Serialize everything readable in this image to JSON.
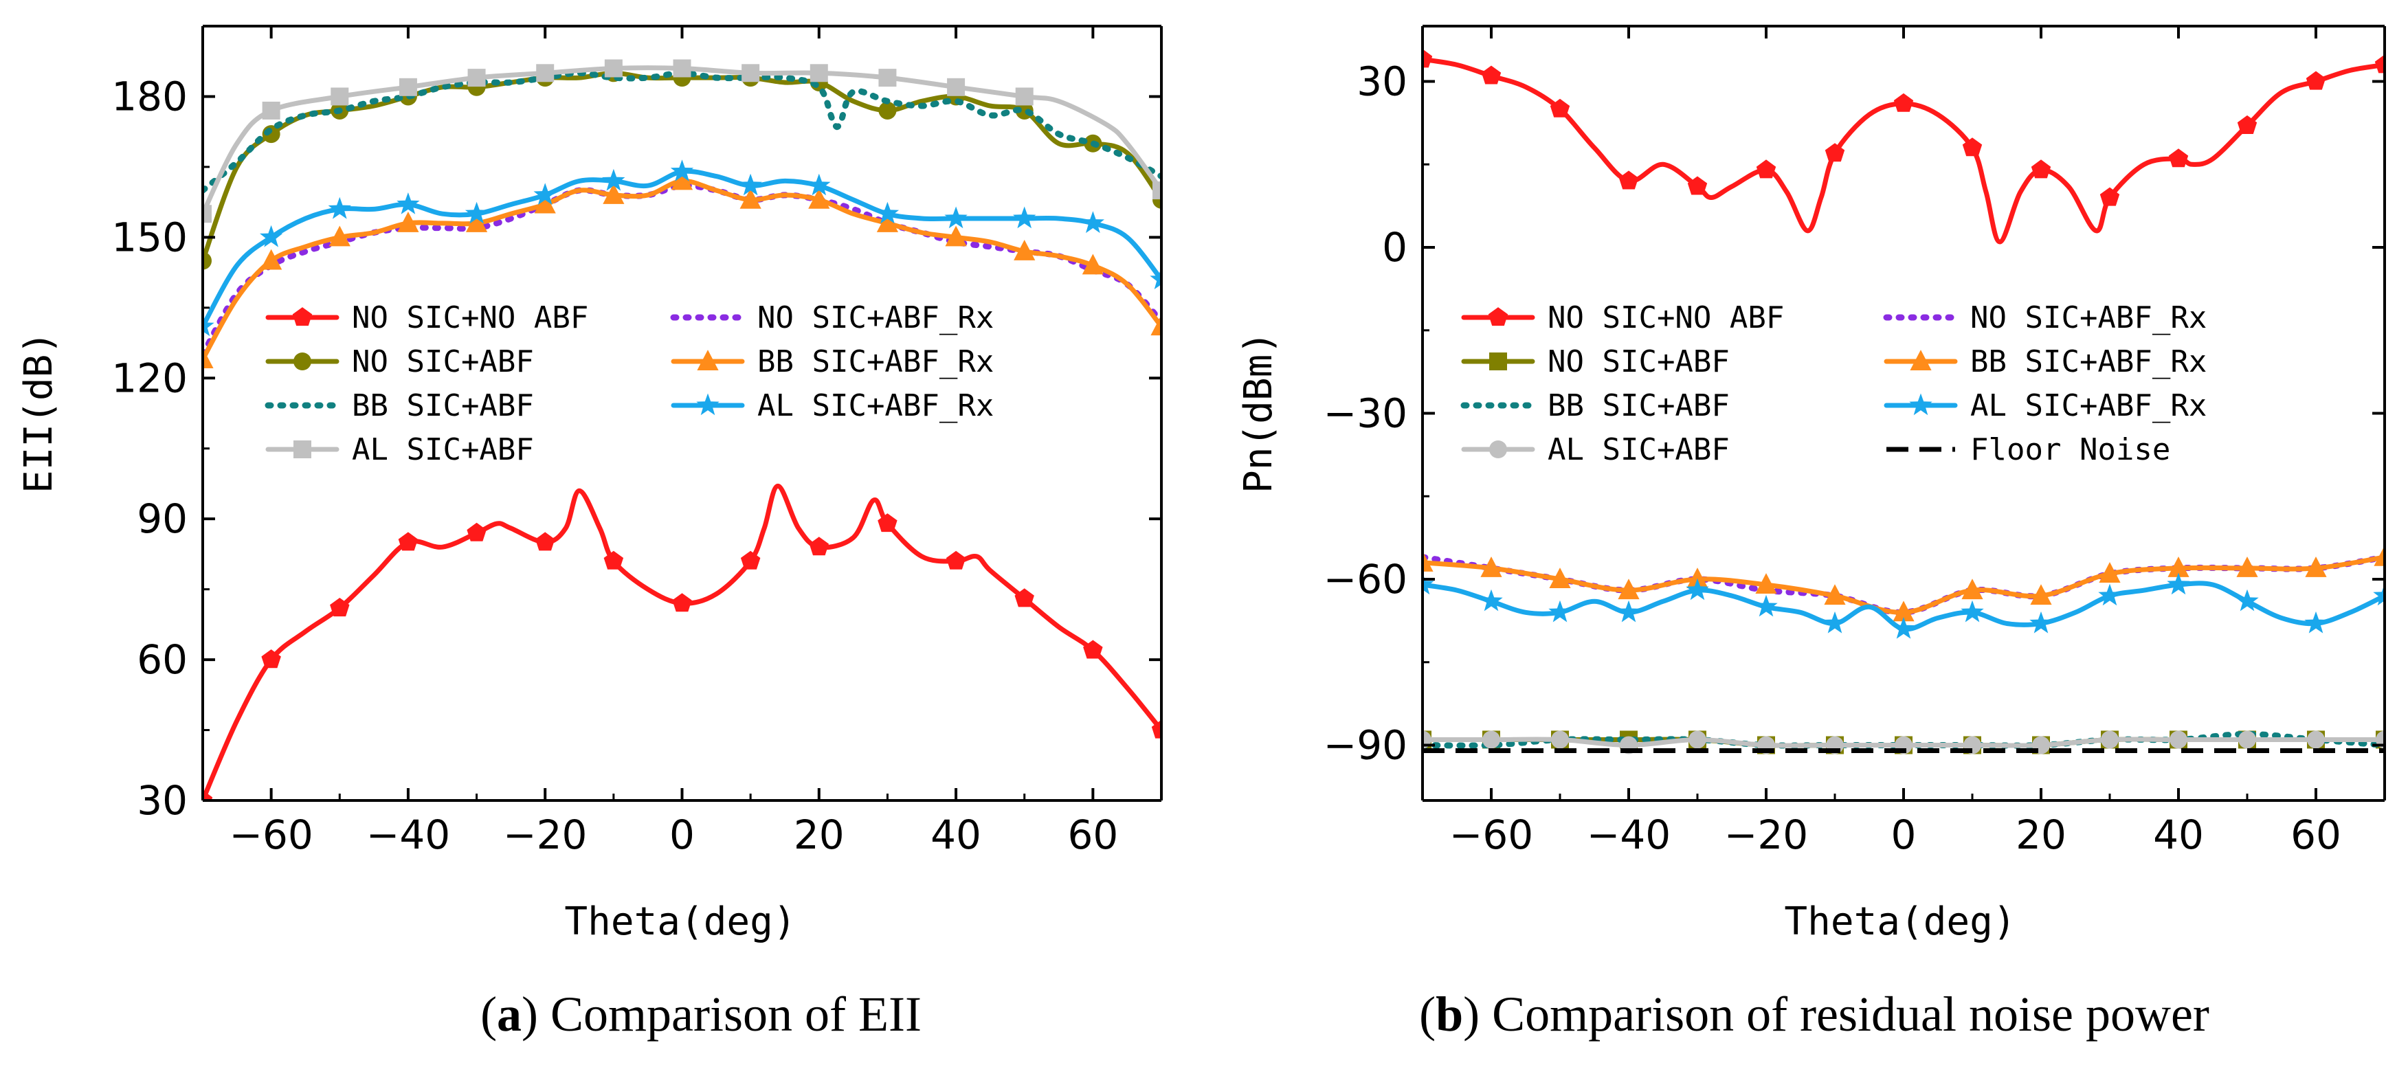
{
  "chart_data": [
    {
      "id": "a",
      "type": "line",
      "caption_letter": "a",
      "caption_text": "Comparison of EII",
      "xlabel": "Theta(deg)",
      "ylabel": "EII(dB)",
      "xlim": [
        -70,
        70
      ],
      "ylim": [
        30,
        195
      ],
      "xticks": [
        -60,
        -40,
        -20,
        0,
        20,
        40,
        60
      ],
      "yticks": [
        30,
        60,
        90,
        120,
        150,
        180
      ],
      "legend_position": "center",
      "series": [
        {
          "name": "NO SIC+NO ABF",
          "color": "#ff1a1a",
          "style": "solid",
          "marker": "pentagon",
          "x": [
            -70,
            -65,
            -60,
            -55,
            -50,
            -45,
            -40,
            -35,
            -30,
            -27,
            -25,
            -20,
            -17,
            -15,
            -12,
            -10,
            -5,
            0,
            5,
            10,
            12,
            14,
            17,
            20,
            25,
            28,
            30,
            35,
            40,
            43,
            45,
            50,
            55,
            60,
            65,
            70
          ],
          "y": [
            30,
            47,
            60,
            66,
            71,
            78,
            85,
            84,
            87,
            89,
            88,
            85,
            88,
            96,
            88,
            81,
            75,
            72,
            74,
            81,
            88,
            97,
            88,
            84,
            86,
            94,
            89,
            82,
            81,
            82,
            79,
            73,
            67,
            62,
            54,
            45
          ]
        },
        {
          "name": "NO SIC+ABF",
          "color": "#808000",
          "style": "solid",
          "marker": "circle",
          "x": [
            -70,
            -65,
            -60,
            -55,
            -50,
            -45,
            -40,
            -35,
            -30,
            -25,
            -20,
            -15,
            -10,
            -5,
            0,
            5,
            10,
            15,
            20,
            25,
            30,
            35,
            40,
            45,
            50,
            55,
            60,
            65,
            70
          ],
          "y": [
            145,
            165,
            172,
            176,
            177,
            178,
            180,
            182,
            182,
            183,
            184,
            184,
            185,
            184,
            184,
            184,
            184,
            183,
            183,
            179,
            177,
            179,
            180,
            178,
            177,
            170,
            170,
            168,
            158
          ]
        },
        {
          "name": "BB SIC+ABF",
          "color": "#108080",
          "style": "dotted",
          "marker": "none",
          "x": [
            -70,
            -65,
            -60,
            -55,
            -50,
            -45,
            -40,
            -35,
            -30,
            -25,
            -20,
            -15,
            -10,
            -5,
            0,
            5,
            10,
            15,
            20,
            22,
            23,
            25,
            30,
            35,
            40,
            45,
            50,
            55,
            60,
            65,
            70
          ],
          "y": [
            160,
            166,
            173,
            176,
            177,
            179,
            180,
            182,
            183,
            183,
            184,
            185,
            184,
            184,
            185,
            184,
            184,
            184,
            182,
            175,
            174,
            181,
            179,
            178,
            179,
            176,
            177,
            172,
            170,
            167,
            163
          ]
        },
        {
          "name": "AL SIC+ABF",
          "color": "#c0c0c0",
          "style": "solid",
          "marker": "square",
          "x": [
            -70,
            -65,
            -60,
            -50,
            -40,
            -30,
            -20,
            -10,
            0,
            10,
            20,
            30,
            40,
            50,
            55,
            62,
            65,
            70
          ],
          "y": [
            155,
            170,
            177,
            180,
            182,
            184,
            185,
            186,
            186,
            185,
            185,
            184,
            182,
            180,
            179,
            174,
            170,
            160
          ]
        },
        {
          "name": "NO SIC+ABF_Rx",
          "color": "#8a2be2",
          "style": "dotted",
          "marker": "none",
          "x": [
            -70,
            -65,
            -60,
            -55,
            -50,
            -45,
            -40,
            -35,
            -30,
            -25,
            -20,
            -15,
            -10,
            -5,
            0,
            5,
            10,
            15,
            20,
            25,
            30,
            35,
            40,
            45,
            50,
            55,
            60,
            65,
            70
          ],
          "y": [
            125,
            138,
            144,
            147,
            149,
            151,
            152,
            152,
            152,
            154,
            157,
            160,
            159,
            159,
            161,
            160,
            158,
            159,
            158,
            156,
            153,
            151,
            149,
            148,
            147,
            146,
            143,
            140,
            132
          ]
        },
        {
          "name": "BB SIC+ABF_Rx",
          "color": "#ff8c1a",
          "style": "solid",
          "marker": "triangle",
          "x": [
            -70,
            -65,
            -60,
            -55,
            -50,
            -45,
            -40,
            -35,
            -30,
            -25,
            -20,
            -15,
            -10,
            -5,
            0,
            5,
            10,
            15,
            20,
            25,
            30,
            35,
            40,
            45,
            50,
            55,
            60,
            65,
            70
          ],
          "y": [
            124,
            137,
            145,
            148,
            150,
            151,
            153,
            153,
            153,
            155,
            157,
            160,
            159,
            159,
            162,
            160,
            158,
            159,
            158,
            155,
            153,
            151,
            150,
            149,
            147,
            146,
            144,
            140,
            131
          ]
        },
        {
          "name": "AL SIC+ABF_Rx",
          "color": "#1aa7ec",
          "style": "solid",
          "marker": "star",
          "x": [
            -70,
            -65,
            -60,
            -55,
            -50,
            -45,
            -40,
            -35,
            -30,
            -25,
            -20,
            -15,
            -10,
            -5,
            0,
            5,
            10,
            15,
            20,
            25,
            30,
            35,
            40,
            45,
            50,
            55,
            60,
            65,
            70
          ],
          "y": [
            131,
            144,
            150,
            154,
            156,
            156,
            157,
            155,
            155,
            157,
            159,
            162,
            162,
            161,
            164,
            163,
            161,
            162,
            161,
            158,
            155,
            154,
            154,
            154,
            154,
            154,
            153,
            150,
            141
          ]
        }
      ]
    },
    {
      "id": "b",
      "type": "line",
      "caption_letter": "b",
      "caption_text": "Comparison of residual noise power",
      "xlabel": "Theta(deg)",
      "ylabel": "Pn(dBm)",
      "xlim": [
        -70,
        70
      ],
      "ylim": [
        -100,
        40
      ],
      "xticks": [
        -60,
        -40,
        -20,
        0,
        20,
        40,
        60
      ],
      "yticks": [
        -90,
        -60,
        -30,
        0,
        30
      ],
      "legend_position": "center-left",
      "series": [
        {
          "name": "NO SIC+NO ABF",
          "color": "#ff1a1a",
          "style": "solid",
          "marker": "pentagon",
          "x": [
            -70,
            -65,
            -60,
            -55,
            -50,
            -45,
            -40,
            -35,
            -30,
            -28,
            -25,
            -20,
            -17,
            -14,
            -12,
            -10,
            -5,
            0,
            5,
            10,
            12,
            14,
            17,
            20,
            24,
            28,
            30,
            35,
            40,
            42,
            45,
            50,
            55,
            60,
            65,
            70
          ],
          "y": [
            34,
            33,
            31,
            29,
            25,
            18,
            12,
            15,
            11,
            9,
            11,
            14,
            10,
            3,
            9,
            17,
            24,
            26,
            24,
            18,
            10,
            1,
            10,
            14,
            11,
            3,
            9,
            15,
            16,
            15,
            16,
            22,
            28,
            30,
            32,
            33
          ]
        },
        {
          "name": "NO SIC+ABF",
          "color": "#808000",
          "style": "solid",
          "marker": "square",
          "x": [
            -70,
            -60,
            -50,
            -40,
            -30,
            -20,
            -10,
            0,
            10,
            20,
            30,
            40,
            50,
            60,
            70
          ],
          "y": [
            -89,
            -89,
            -89,
            -89,
            -89,
            -90,
            -90,
            -90,
            -90,
            -90,
            -89,
            -89,
            -89,
            -89,
            -89
          ]
        },
        {
          "name": "BB SIC+ABF",
          "color": "#108080",
          "style": "dotted",
          "marker": "none",
          "x": [
            -70,
            -60,
            -50,
            -40,
            -30,
            -20,
            -10,
            0,
            10,
            20,
            30,
            40,
            50,
            60,
            70
          ],
          "y": [
            -90,
            -90,
            -89,
            -89,
            -89,
            -90,
            -90,
            -90,
            -90,
            -90,
            -89,
            -89,
            -88,
            -89,
            -90
          ]
        },
        {
          "name": "AL SIC+ABF",
          "color": "#c0c0c0",
          "style": "solid",
          "marker": "circle",
          "x": [
            -70,
            -60,
            -50,
            -40,
            -30,
            -20,
            -10,
            0,
            10,
            20,
            30,
            40,
            50,
            60,
            70
          ],
          "y": [
            -89,
            -89,
            -89,
            -90,
            -89,
            -90,
            -90,
            -90,
            -90,
            -90,
            -89,
            -89,
            -89,
            -89,
            -89
          ]
        },
        {
          "name": "NO SIC+ABF_Rx",
          "color": "#8a2be2",
          "style": "dotted",
          "marker": "none",
          "x": [
            -70,
            -60,
            -50,
            -40,
            -30,
            -20,
            -10,
            0,
            10,
            20,
            30,
            40,
            50,
            60,
            70
          ],
          "y": [
            -56,
            -58,
            -60,
            -62,
            -60,
            -62,
            -63,
            -66,
            -62,
            -63,
            -59,
            -58,
            -58,
            -58,
            -56
          ]
        },
        {
          "name": "BB SIC+ABF_Rx",
          "color": "#ff8c1a",
          "style": "solid",
          "marker": "triangle",
          "x": [
            -70,
            -60,
            -50,
            -40,
            -30,
            -20,
            -10,
            0,
            10,
            20,
            30,
            40,
            50,
            60,
            70
          ],
          "y": [
            -57,
            -58,
            -60,
            -62,
            -60,
            -61,
            -63,
            -66,
            -62,
            -63,
            -59,
            -58,
            -58,
            -58,
            -56
          ]
        },
        {
          "name": "AL SIC+ABF_Rx",
          "color": "#1aa7ec",
          "style": "solid",
          "marker": "star",
          "x": [
            -70,
            -65,
            -60,
            -55,
            -50,
            -45,
            -40,
            -35,
            -30,
            -25,
            -20,
            -15,
            -10,
            -5,
            0,
            5,
            10,
            15,
            20,
            25,
            30,
            35,
            40,
            45,
            50,
            55,
            60,
            65,
            70
          ],
          "y": [
            -61,
            -62,
            -64,
            -66,
            -66,
            -64,
            -66,
            -64,
            -62,
            -63,
            -65,
            -66,
            -68,
            -65,
            -69,
            -67,
            -66,
            -68,
            -68,
            -66,
            -63,
            -62,
            -61,
            -61,
            -64,
            -67,
            -68,
            -66,
            -63
          ]
        },
        {
          "name": "Floor Noise",
          "color": "#000000",
          "style": "dashed",
          "marker": "none",
          "x": [
            -70,
            70
          ],
          "y": [
            -91,
            -91
          ]
        }
      ]
    }
  ]
}
